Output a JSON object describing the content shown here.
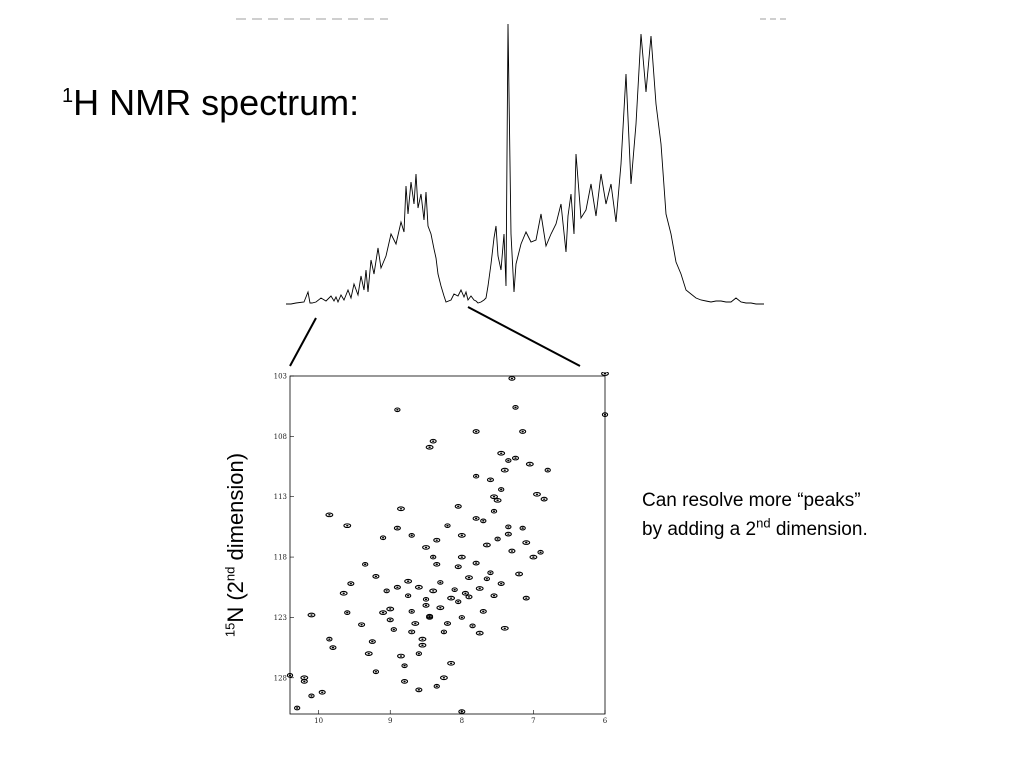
{
  "title": {
    "sup": "1",
    "text": "H NMR spectrum:"
  },
  "y_axis_label": {
    "sup": "15",
    "pre": "N (2",
    "sup2": "nd",
    "post": " dimension)"
  },
  "caption": {
    "line1": "Can resolve more “peaks”",
    "line2_pre": "by adding a 2",
    "line2_sup": "nd",
    "line2_post": " dimension."
  },
  "chart_data": [
    {
      "type": "line",
      "title": "",
      "xlabel": "",
      "ylabel": "",
      "series": [
        {
          "x": [
            0,
            5,
            10,
            18,
            22,
            24,
            26,
            30,
            35,
            40,
            45,
            48,
            50,
            52,
            55,
            58,
            62,
            65,
            68,
            72,
            75,
            78,
            80,
            82,
            85,
            88,
            92,
            95,
            100,
            105,
            110,
            115,
            118,
            120,
            122,
            125,
            128,
            130,
            132,
            135,
            138,
            140,
            142,
            145,
            148,
            150,
            152,
            155,
            158,
            160,
            165,
            168,
            172,
            175,
            178,
            180,
            182,
            185,
            188,
            190,
            192,
            195,
            198,
            200,
            202,
            205,
            208,
            210,
            212,
            215,
            218,
            220,
            222,
            225,
            228,
            230,
            235,
            240,
            245,
            250,
            255,
            260,
            265,
            270,
            275,
            280,
            282,
            285,
            288,
            290,
            295,
            300,
            305,
            310,
            315,
            320,
            325,
            330,
            335,
            340,
            345,
            350,
            355,
            360,
            365,
            370,
            375,
            380,
            385,
            390,
            395,
            400,
            405,
            410,
            415,
            420,
            425,
            430,
            435,
            440,
            445,
            450,
            455,
            460,
            465,
            470,
            475,
            478
          ],
          "y": [
            0,
            0,
            1,
            2,
            12,
            1,
            1,
            2,
            6,
            3,
            8,
            3,
            7,
            2,
            9,
            4,
            14,
            6,
            20,
            9,
            28,
            14,
            34,
            12,
            44,
            30,
            56,
            36,
            48,
            70,
            60,
            82,
            72,
            118,
            90,
            122,
            100,
            130,
            96,
            110,
            84,
            112,
            78,
            70,
            55,
            46,
            30,
            18,
            8,
            2,
            4,
            10,
            8,
            14,
            7,
            12,
            4,
            8,
            4,
            3,
            1,
            2,
            4,
            6,
            18,
            40,
            66,
            78,
            48,
            34,
            70,
            18,
            280,
            70,
            12,
            40,
            60,
            72,
            62,
            64,
            90,
            58,
            70,
            80,
            100,
            52,
            88,
            110,
            70,
            150,
            86,
            94,
            120,
            88,
            130,
            100,
            120,
            82,
            140,
            230,
            120,
            180,
            270,
            212,
            268,
            200,
            160,
            90,
            70,
            42,
            30,
            14,
            10,
            6,
            4,
            3,
            2,
            3,
            3,
            2,
            2,
            6,
            2,
            1,
            1,
            0,
            0,
            0
          ],
          "name": ""
        }
      ]
    },
    {
      "type": "scatter",
      "title": "",
      "xlabel": "",
      "ylabel": "",
      "xlim": [
        10.4,
        6.0
      ],
      "ylim": [
        103,
        131
      ],
      "x_ticks": [
        "10",
        "9",
        "8",
        "7",
        "6"
      ],
      "y_ticks": [
        "103",
        "108",
        "113",
        "118",
        "123",
        "128"
      ],
      "series": [
        {
          "name": "",
          "points": [
            [
              10.3,
              130.5
            ],
            [
              10.2,
              128.3
            ],
            [
              10.2,
              128.0
            ],
            [
              10.1,
              129.5
            ],
            [
              9.95,
              129.2
            ],
            [
              10.1,
              122.8
            ],
            [
              9.85,
              124.8
            ],
            [
              9.8,
              125.5
            ],
            [
              9.65,
              121.0
            ],
            [
              9.6,
              122.6
            ],
            [
              9.55,
              120.2
            ],
            [
              9.6,
              115.4
            ],
            [
              9.35,
              118.6
            ],
            [
              9.2,
              119.6
            ],
            [
              9.1,
              122.6
            ],
            [
              9.05,
              120.8
            ],
            [
              9.0,
              123.2
            ],
            [
              9.0,
              122.3
            ],
            [
              8.95,
              124.0
            ],
            [
              8.9,
              120.5
            ],
            [
              8.85,
              126.2
            ],
            [
              8.8,
              127.0
            ],
            [
              8.8,
              128.3
            ],
            [
              8.75,
              120.0
            ],
            [
              8.7,
              122.5
            ],
            [
              8.7,
              124.2
            ],
            [
              8.65,
              123.5
            ],
            [
              8.6,
              126.0
            ],
            [
              8.6,
              129.0
            ],
            [
              8.55,
              125.3
            ],
            [
              8.5,
              121.5
            ],
            [
              8.45,
              123.0
            ],
            [
              8.4,
              120.8
            ],
            [
              8.4,
              118.0
            ],
            [
              8.35,
              118.6
            ],
            [
              8.3,
              122.2
            ],
            [
              8.25,
              124.2
            ],
            [
              8.2,
              123.5
            ],
            [
              8.15,
              126.8
            ],
            [
              8.1,
              120.7
            ],
            [
              8.05,
              118.8
            ],
            [
              8.0,
              118.0
            ],
            [
              8.0,
              123.0
            ],
            [
              7.95,
              121.0
            ],
            [
              7.9,
              119.7
            ],
            [
              7.85,
              123.7
            ],
            [
              7.8,
              118.5
            ],
            [
              7.75,
              120.6
            ],
            [
              7.7,
              115.0
            ],
            [
              7.7,
              122.5
            ],
            [
              7.65,
              117.0
            ],
            [
              7.6,
              119.3
            ],
            [
              7.55,
              121.2
            ],
            [
              7.5,
              113.3
            ],
            [
              7.5,
              116.5
            ],
            [
              7.45,
              120.2
            ],
            [
              7.4,
              123.9
            ],
            [
              7.35,
              115.5
            ],
            [
              7.3,
              117.5
            ],
            [
              7.2,
              119.4
            ],
            [
              7.15,
              115.6
            ],
            [
              7.1,
              121.4
            ],
            [
              7.0,
              118.0
            ],
            [
              6.9,
              117.6
            ],
            [
              6.85,
              113.2
            ],
            [
              6.95,
              112.8
            ],
            [
              7.8,
              111.3
            ],
            [
              7.6,
              111.6
            ],
            [
              7.55,
              113.0
            ],
            [
              7.45,
              112.4
            ],
            [
              8.05,
              113.8
            ],
            [
              8.0,
              116.2
            ],
            [
              8.2,
              115.4
            ],
            [
              8.35,
              116.6
            ],
            [
              8.5,
              117.2
            ],
            [
              8.7,
              116.2
            ],
            [
              8.9,
              115.6
            ],
            [
              8.85,
              114.0
            ],
            [
              9.1,
              116.4
            ],
            [
              8.4,
              108.4
            ],
            [
              8.45,
              108.9
            ],
            [
              8.9,
              105.8
            ],
            [
              7.8,
              107.6
            ],
            [
              7.45,
              109.4
            ],
            [
              7.35,
              110.0
            ],
            [
              7.25,
              109.8
            ],
            [
              7.4,
              110.8
            ],
            [
              7.25,
              105.6
            ],
            [
              7.15,
              107.6
            ],
            [
              7.05,
              110.3
            ],
            [
              6.8,
              110.8
            ],
            [
              7.3,
              103.2
            ],
            [
              6.0,
              102.8
            ],
            [
              6.0,
              106.2
            ],
            [
              8.0,
              130.8
            ],
            [
              8.25,
              128.0
            ],
            [
              8.35,
              128.7
            ],
            [
              8.5,
              122.0
            ],
            [
              8.6,
              120.5
            ],
            [
              8.05,
              121.7
            ],
            [
              7.9,
              121.3
            ],
            [
              7.75,
              124.3
            ],
            [
              7.65,
              119.8
            ],
            [
              7.35,
              116.1
            ],
            [
              7.1,
              116.8
            ],
            [
              7.55,
              114.2
            ],
            [
              7.8,
              114.8
            ],
            [
              8.15,
              121.4
            ],
            [
              8.3,
              120.1
            ],
            [
              8.45,
              122.9
            ],
            [
              8.55,
              124.8
            ],
            [
              8.75,
              121.2
            ],
            [
              9.25,
              125.0
            ],
            [
              9.3,
              126.0
            ],
            [
              9.2,
              127.5
            ],
            [
              9.4,
              123.6
            ],
            [
              9.85,
              114.5
            ],
            [
              10.4,
              127.8
            ]
          ]
        }
      ]
    }
  ]
}
